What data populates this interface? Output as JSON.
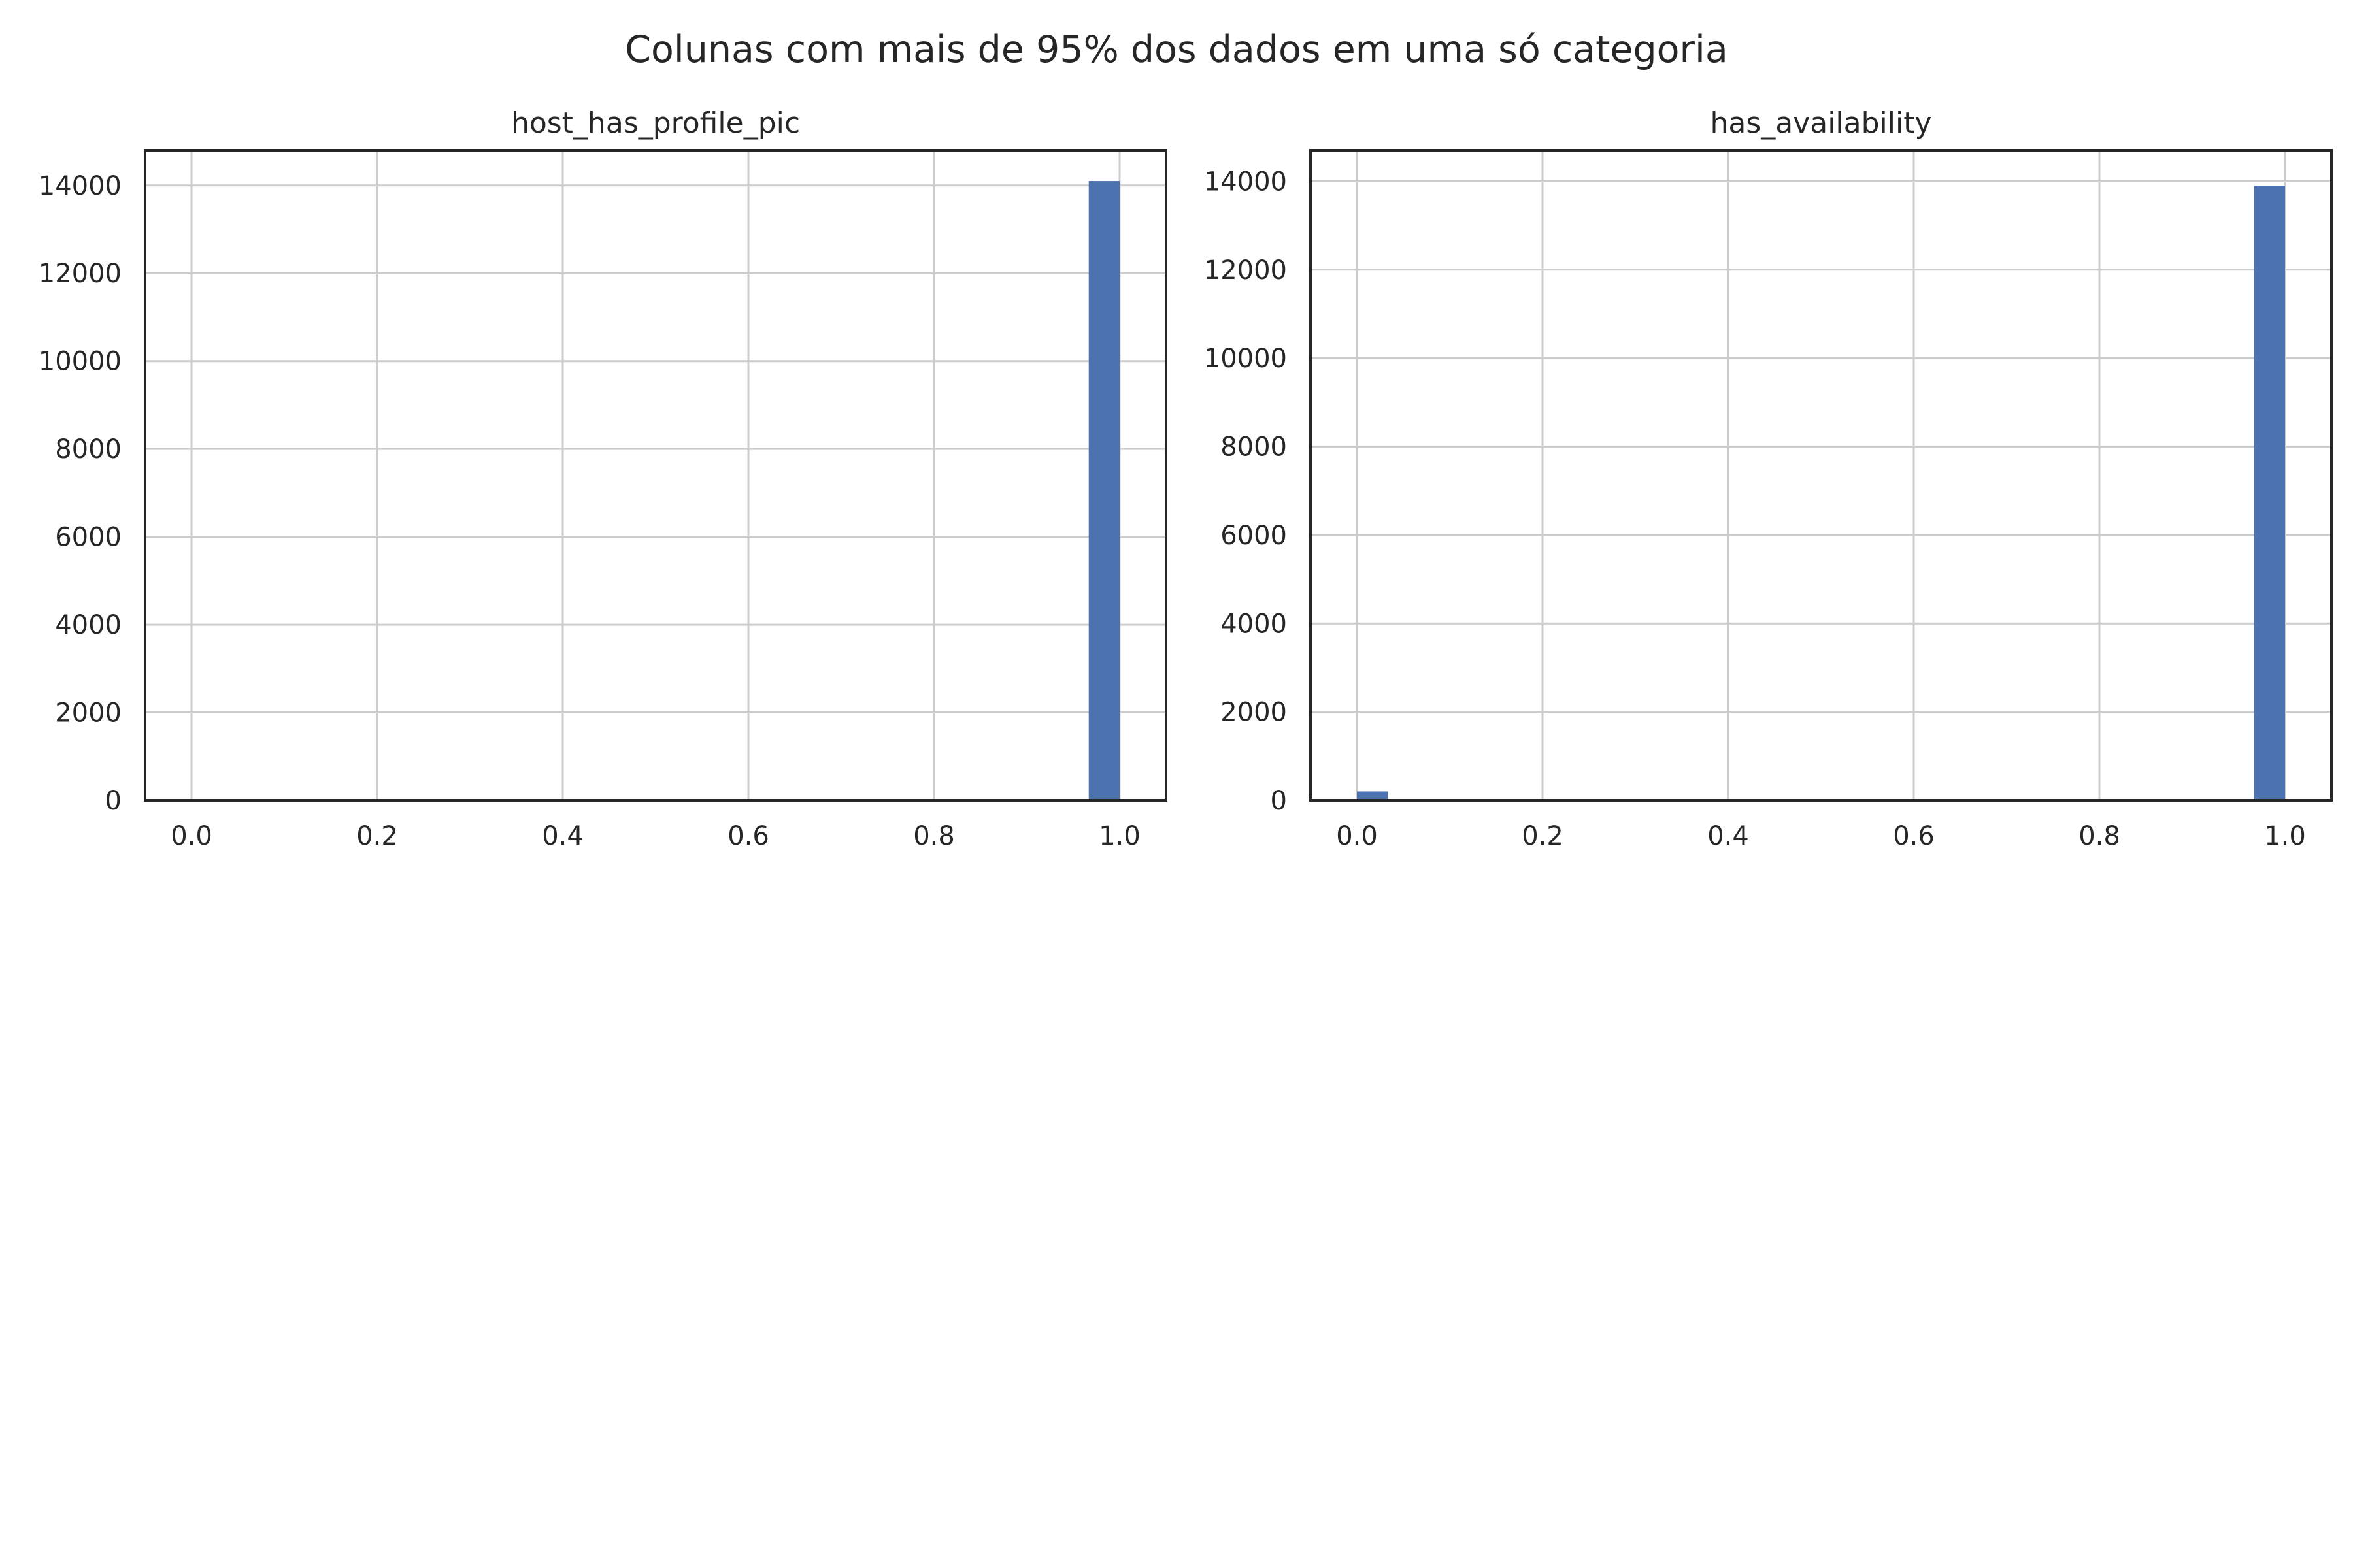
{
  "chart_data": {
    "type": "bar",
    "title": "Colunas com mais de 95% dos dados em uma só categoria",
    "colors": {
      "bar": "#4c72b0",
      "grid": "#cccccc",
      "frame": "#262626",
      "text": "#262626"
    },
    "grid": true,
    "subplots": [
      {
        "title": "host_has_profile_pic",
        "xlim": [
          -0.05,
          1.05
        ],
        "ylim": [
          0,
          14800
        ],
        "xticks": [
          0.0,
          0.2,
          0.4,
          0.6,
          0.8,
          1.0
        ],
        "xtick_labels": [
          "0.0",
          "0.2",
          "0.4",
          "0.6",
          "0.8",
          "1.0"
        ],
        "yticks": [
          0,
          2000,
          4000,
          6000,
          8000,
          10000,
          12000,
          14000
        ],
        "ytick_labels": [
          "0",
          "2000",
          "4000",
          "6000",
          "8000",
          "10000",
          "12000",
          "14000"
        ],
        "bins": 30,
        "bars": [
          {
            "x0": 0.9667,
            "x1": 1.0,
            "value": 14100
          }
        ]
      },
      {
        "title": "has_availability",
        "xlim": [
          -0.05,
          1.05
        ],
        "ylim": [
          0,
          14700
        ],
        "xticks": [
          0.0,
          0.2,
          0.4,
          0.6,
          0.8,
          1.0
        ],
        "xtick_labels": [
          "0.0",
          "0.2",
          "0.4",
          "0.6",
          "0.8",
          "1.0"
        ],
        "yticks": [
          0,
          2000,
          4000,
          6000,
          8000,
          10000,
          12000,
          14000
        ],
        "ytick_labels": [
          "0",
          "2000",
          "4000",
          "6000",
          "8000",
          "10000",
          "12000",
          "14000"
        ],
        "bins": 30,
        "bars": [
          {
            "x0": 0.0,
            "x1": 0.0333,
            "value": 200
          },
          {
            "x0": 0.9667,
            "x1": 1.0,
            "value": 13900
          }
        ]
      }
    ]
  }
}
